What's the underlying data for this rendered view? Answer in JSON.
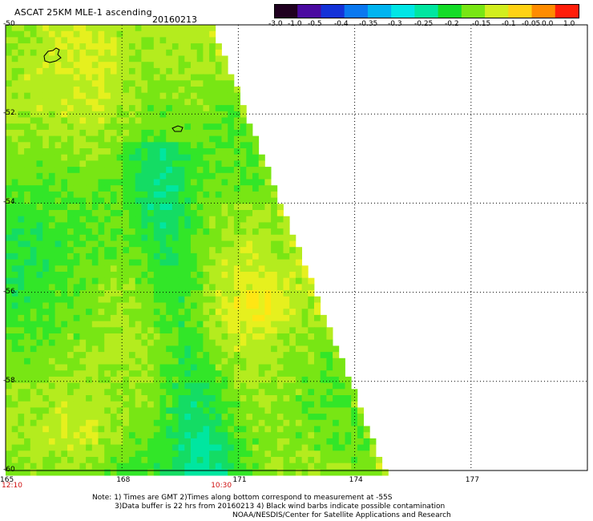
{
  "header": {
    "title": "ASCAT 25KM MLE-1 ascending",
    "date": "20160213"
  },
  "colorbar": {
    "labels": [
      "-3.0",
      "-1.0",
      "-0.5",
      "-0.4",
      "-0.35",
      "-0.3",
      "-0.25",
      "-0.2",
      "-0.15",
      "-0.1",
      "-0.05",
      "0.0",
      "1.0"
    ],
    "colors": [
      "#200020",
      "#4a0aa0",
      "#1432d8",
      "#0a78f0",
      "#00b4f0",
      "#00e6e6",
      "#00e6a0",
      "#14dc28",
      "#78e614",
      "#d2ee1e",
      "#ffd214",
      "#ff8c00",
      "#ff1e0a"
    ]
  },
  "map": {
    "lat_labels": [
      "-50",
      "-52",
      "-54",
      "-56",
      "-58",
      "-60"
    ],
    "lon_labels": [
      "165",
      "168",
      "171",
      "174",
      "177"
    ],
    "time_labels": [
      "12:10",
      "10:30"
    ],
    "lon_range": [
      165,
      180
    ],
    "lat_range": [
      -50,
      -60
    ]
  },
  "footer": {
    "note_line1": "Note: 1) Times are GMT 2)Times along bottom correspond to measurement at -55S",
    "note_line2": "3)Data buffer is 22 hrs from 20160213 4) Black wind barbs indicate possible contamination",
    "credit": "NOAA/NESDIS/Center for Satellite Applications and Research"
  }
}
